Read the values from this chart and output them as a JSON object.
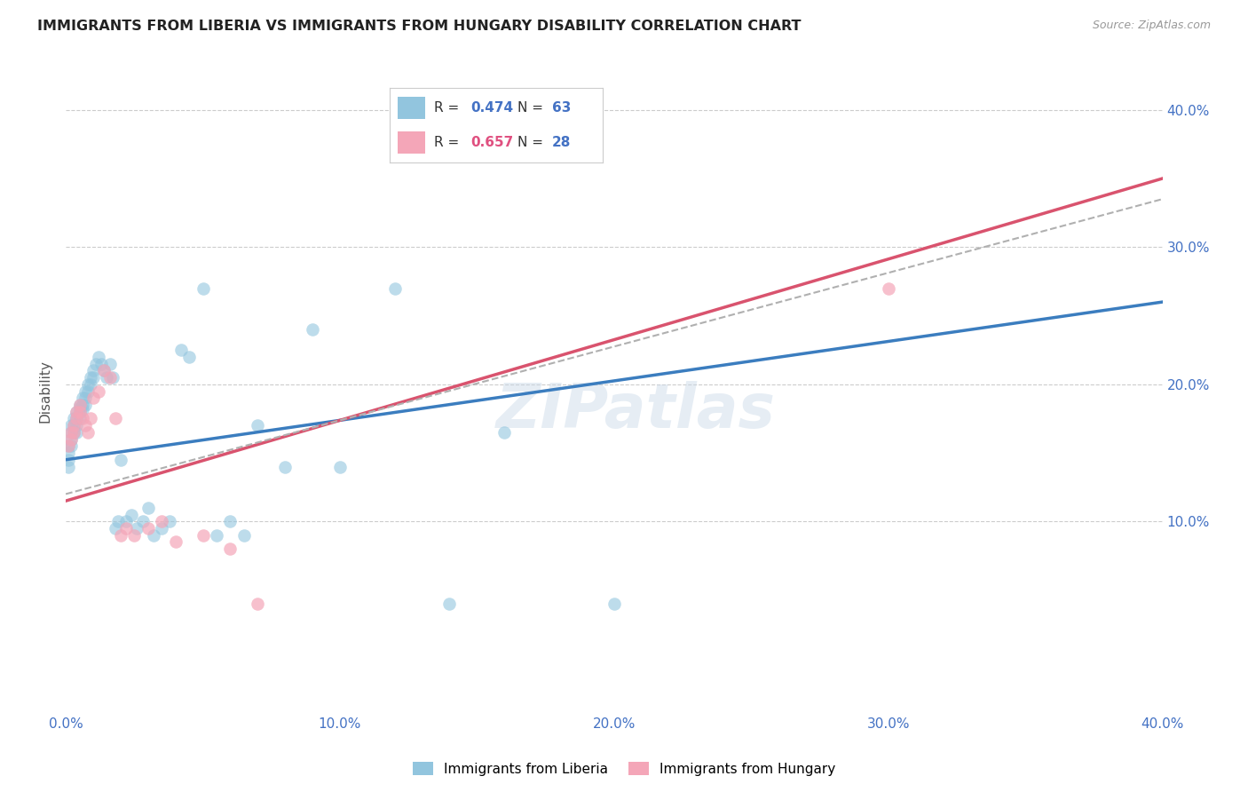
{
  "title": "IMMIGRANTS FROM LIBERIA VS IMMIGRANTS FROM HUNGARY DISABILITY CORRELATION CHART",
  "source": "Source: ZipAtlas.com",
  "ylabel": "Disability",
  "xlim": [
    0.0,
    0.4
  ],
  "ylim": [
    -0.04,
    0.43
  ],
  "xticks": [
    0.0,
    0.1,
    0.2,
    0.3,
    0.4
  ],
  "yticks": [
    0.1,
    0.2,
    0.3,
    0.4
  ],
  "xtick_labels": [
    "0.0%",
    "10.0%",
    "20.0%",
    "30.0%",
    "40.0%"
  ],
  "ytick_labels": [
    "10.0%",
    "20.0%",
    "30.0%",
    "40.0%"
  ],
  "liberia_color": "#92c5de",
  "hungary_color": "#f4a6b8",
  "liberia_R": "0.474",
  "liberia_N": "63",
  "hungary_R": "0.657",
  "hungary_N": "28",
  "watermark": "ZIPatlas",
  "label_color_R": "#333333",
  "label_color_val_blue": "#4472c4",
  "label_color_val_pink": "#e05080",
  "label_color_N": "#333333",
  "label_color_N_val": "#4472c4",
  "liberia_x": [
    0.001,
    0.001,
    0.001,
    0.001,
    0.002,
    0.002,
    0.002,
    0.002,
    0.003,
    0.003,
    0.003,
    0.004,
    0.004,
    0.004,
    0.004,
    0.005,
    0.005,
    0.005,
    0.005,
    0.006,
    0.006,
    0.006,
    0.007,
    0.007,
    0.007,
    0.008,
    0.008,
    0.009,
    0.009,
    0.01,
    0.01,
    0.011,
    0.012,
    0.013,
    0.014,
    0.015,
    0.016,
    0.017,
    0.018,
    0.019,
    0.02,
    0.022,
    0.024,
    0.026,
    0.028,
    0.03,
    0.032,
    0.035,
    0.038,
    0.042,
    0.045,
    0.05,
    0.055,
    0.06,
    0.065,
    0.07,
    0.08,
    0.09,
    0.1,
    0.12,
    0.14,
    0.16,
    0.2
  ],
  "liberia_y": [
    0.155,
    0.15,
    0.145,
    0.14,
    0.17,
    0.165,
    0.16,
    0.155,
    0.175,
    0.17,
    0.165,
    0.18,
    0.175,
    0.17,
    0.165,
    0.185,
    0.183,
    0.18,
    0.175,
    0.19,
    0.185,
    0.182,
    0.195,
    0.19,
    0.185,
    0.2,
    0.195,
    0.205,
    0.2,
    0.21,
    0.205,
    0.215,
    0.22,
    0.215,
    0.21,
    0.205,
    0.215,
    0.205,
    0.095,
    0.1,
    0.145,
    0.1,
    0.105,
    0.095,
    0.1,
    0.11,
    0.09,
    0.095,
    0.1,
    0.225,
    0.22,
    0.27,
    0.09,
    0.1,
    0.09,
    0.17,
    0.14,
    0.24,
    0.14,
    0.27,
    0.04,
    0.165,
    0.04
  ],
  "hungary_x": [
    0.001,
    0.002,
    0.002,
    0.003,
    0.003,
    0.004,
    0.004,
    0.005,
    0.005,
    0.006,
    0.007,
    0.008,
    0.009,
    0.01,
    0.012,
    0.014,
    0.016,
    0.018,
    0.02,
    0.022,
    0.025,
    0.03,
    0.035,
    0.04,
    0.05,
    0.06,
    0.07,
    0.3
  ],
  "hungary_y": [
    0.155,
    0.165,
    0.16,
    0.17,
    0.165,
    0.18,
    0.175,
    0.185,
    0.18,
    0.175,
    0.17,
    0.165,
    0.175,
    0.19,
    0.195,
    0.21,
    0.205,
    0.175,
    0.09,
    0.095,
    0.09,
    0.095,
    0.1,
    0.085,
    0.09,
    0.08,
    0.04,
    0.27
  ],
  "blue_line_x": [
    0.0,
    0.4
  ],
  "blue_line_y": [
    0.145,
    0.26
  ],
  "pink_line_x": [
    0.0,
    0.4
  ],
  "pink_line_y": [
    0.115,
    0.35
  ],
  "dashed_line_x": [
    0.0,
    0.4
  ],
  "dashed_line_y": [
    0.12,
    0.335
  ]
}
